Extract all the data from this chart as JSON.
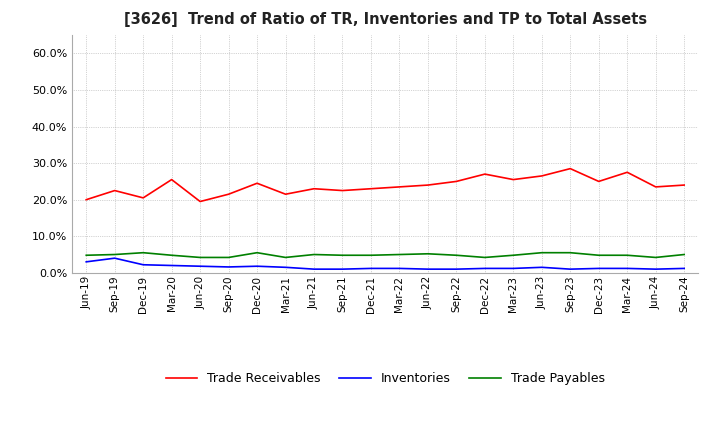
{
  "title": "[3626]  Trend of Ratio of TR, Inventories and TP to Total Assets",
  "x_labels": [
    "Jun-19",
    "Sep-19",
    "Dec-19",
    "Mar-20",
    "Jun-20",
    "Sep-20",
    "Dec-20",
    "Mar-21",
    "Jun-21",
    "Sep-21",
    "Dec-21",
    "Mar-22",
    "Jun-22",
    "Sep-22",
    "Dec-22",
    "Mar-23",
    "Jun-23",
    "Sep-23",
    "Dec-23",
    "Mar-24",
    "Jun-24",
    "Sep-24"
  ],
  "trade_receivables": [
    0.2,
    0.225,
    0.205,
    0.255,
    0.195,
    0.215,
    0.245,
    0.215,
    0.23,
    0.225,
    0.23,
    0.235,
    0.24,
    0.25,
    0.27,
    0.255,
    0.265,
    0.285,
    0.25,
    0.275,
    0.235,
    0.24
  ],
  "inventories": [
    0.03,
    0.04,
    0.022,
    0.02,
    0.018,
    0.016,
    0.018,
    0.015,
    0.01,
    0.01,
    0.012,
    0.012,
    0.01,
    0.01,
    0.012,
    0.012,
    0.015,
    0.01,
    0.012,
    0.012,
    0.01,
    0.012
  ],
  "trade_payables": [
    0.048,
    0.05,
    0.055,
    0.048,
    0.042,
    0.042,
    0.055,
    0.042,
    0.05,
    0.048,
    0.048,
    0.05,
    0.052,
    0.048,
    0.042,
    0.048,
    0.055,
    0.055,
    0.048,
    0.048,
    0.042,
    0.05
  ],
  "colors": {
    "trade_receivables": "#ff0000",
    "inventories": "#0000ff",
    "trade_payables": "#008000"
  },
  "ylim": [
    0.0,
    0.65
  ],
  "yticks": [
    0.0,
    0.1,
    0.2,
    0.3,
    0.4,
    0.5,
    0.6
  ],
  "background_color": "#ffffff",
  "grid_color": "#aaaaaa"
}
